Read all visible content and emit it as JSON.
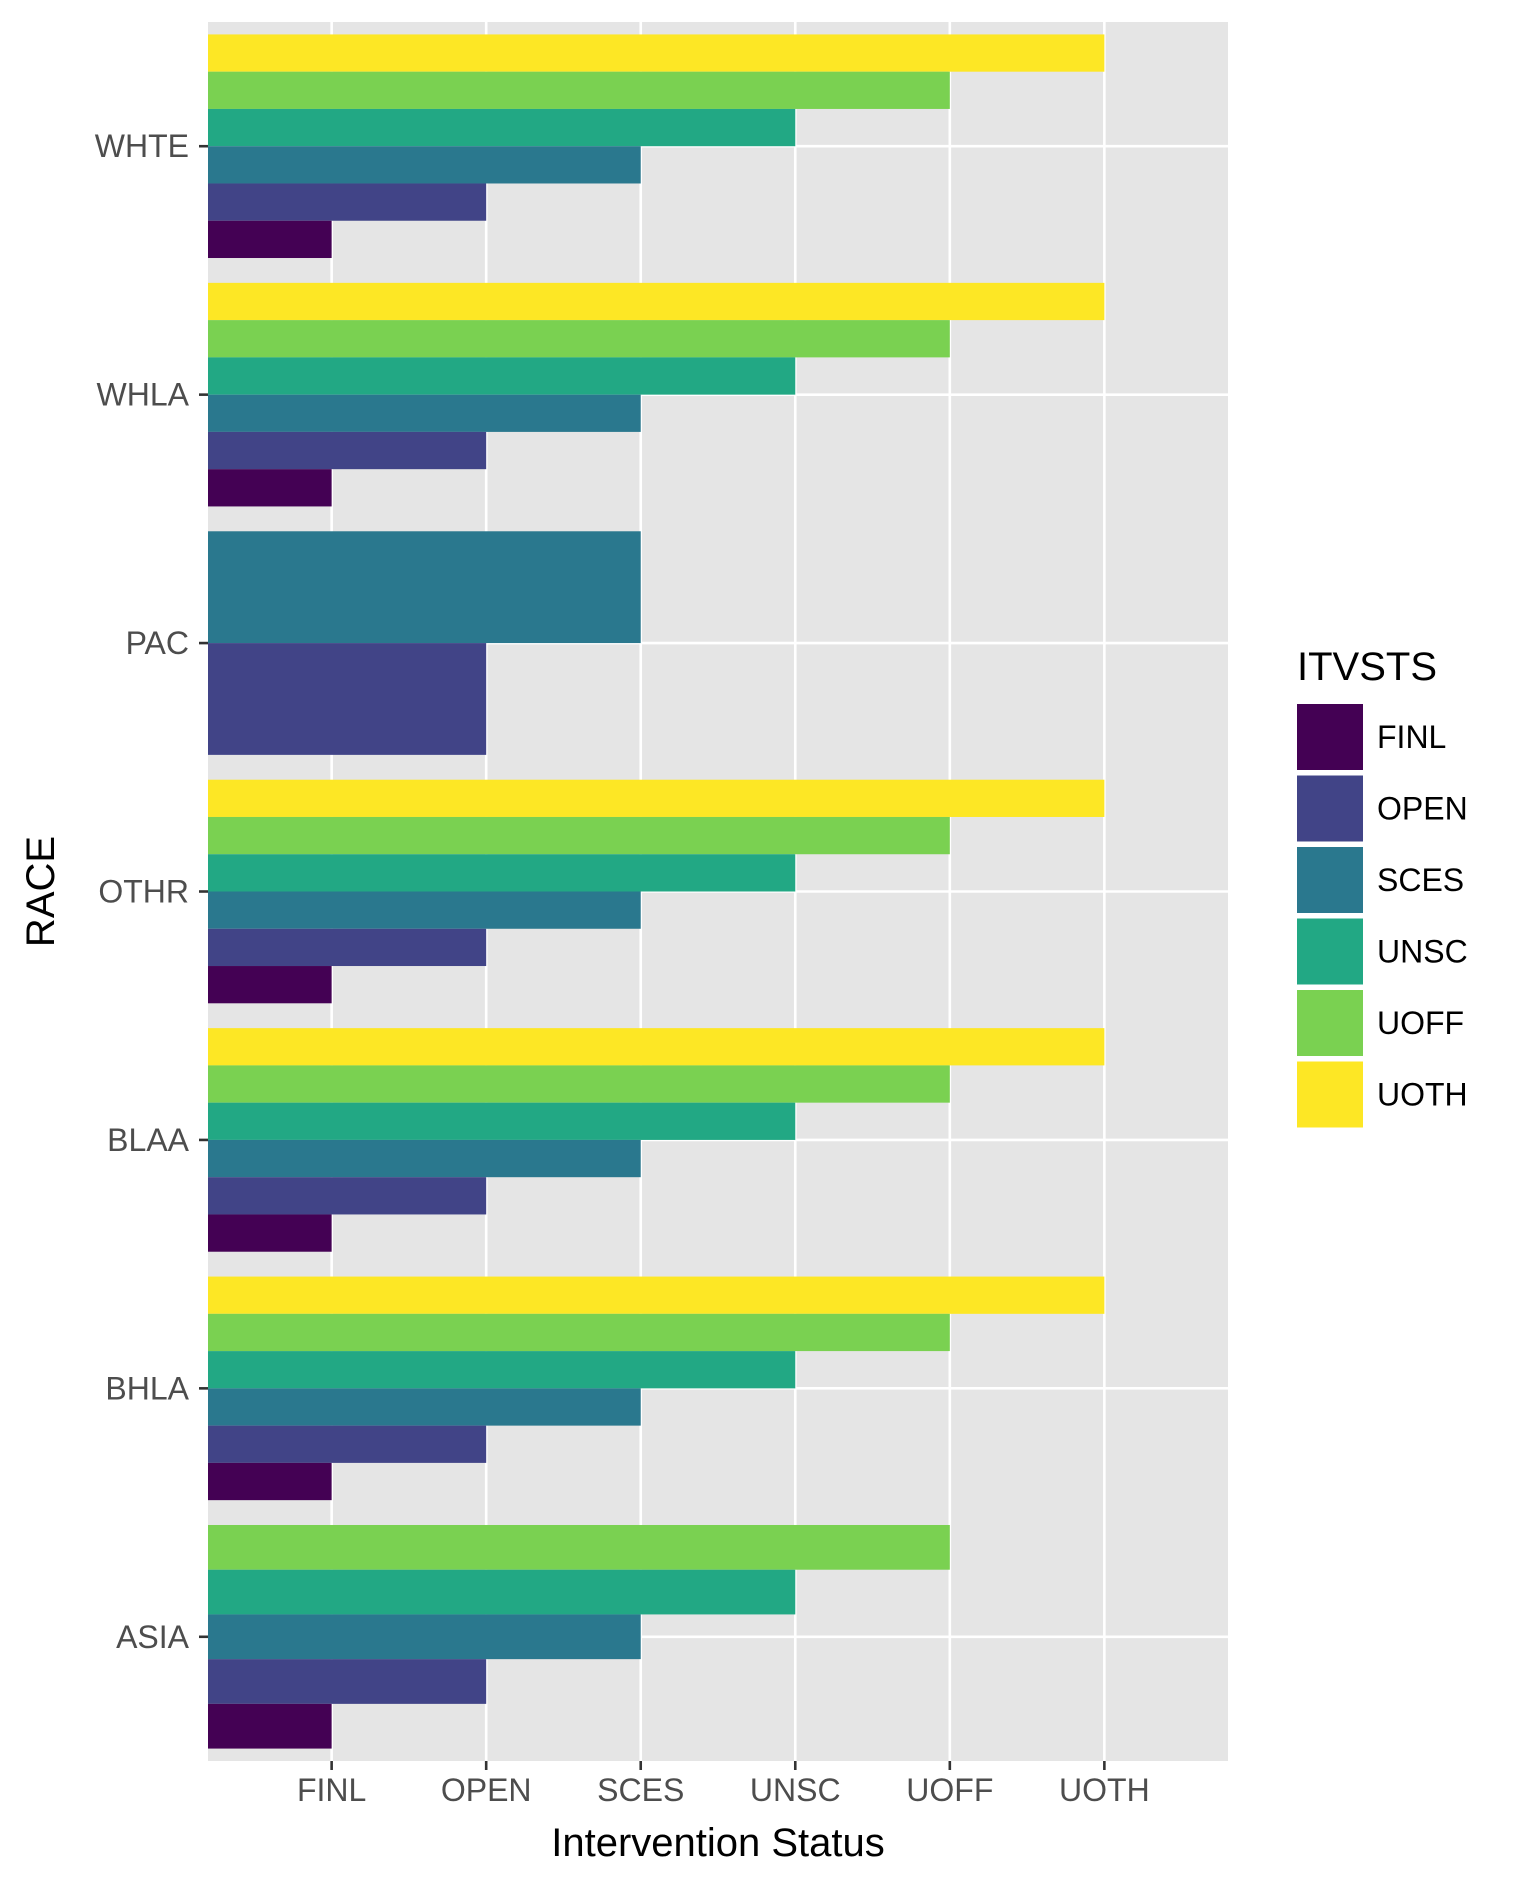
{
  "chart_data": {
    "type": "bar",
    "orientation": "horizontal",
    "xlabel": "Intervention Status",
    "ylabel": "RACE",
    "x_categories": [
      "FINL",
      "OPEN",
      "SCES",
      "UNSC",
      "UOFF",
      "UOTH"
    ],
    "y_categories": [
      "WHTE",
      "WHLA",
      "PAC",
      "OTHR",
      "BLAA",
      "BHLA",
      "ASIA"
    ],
    "legend": {
      "title": "ITVSTS",
      "placement": "right",
      "items": [
        {
          "label": "FINL",
          "color": "#440154"
        },
        {
          "label": "OPEN",
          "color": "#414487"
        },
        {
          "label": "SCES",
          "color": "#2A788E"
        },
        {
          "label": "UNSC",
          "color": "#22A884"
        },
        {
          "label": "UOFF",
          "color": "#7AD151"
        },
        {
          "label": "UOTH",
          "color": "#FDE725"
        }
      ]
    },
    "groups": [
      {
        "race": "WHTE",
        "bars": [
          {
            "status": "FINL",
            "value": "FINL"
          },
          {
            "status": "OPEN",
            "value": "OPEN"
          },
          {
            "status": "SCES",
            "value": "SCES"
          },
          {
            "status": "UNSC",
            "value": "UNSC"
          },
          {
            "status": "UOFF",
            "value": "UOFF"
          },
          {
            "status": "UOTH",
            "value": "UOTH"
          }
        ]
      },
      {
        "race": "WHLA",
        "bars": [
          {
            "status": "FINL",
            "value": "FINL"
          },
          {
            "status": "OPEN",
            "value": "OPEN"
          },
          {
            "status": "SCES",
            "value": "SCES"
          },
          {
            "status": "UNSC",
            "value": "UNSC"
          },
          {
            "status": "UOFF",
            "value": "UOFF"
          },
          {
            "status": "UOTH",
            "value": "UOTH"
          }
        ]
      },
      {
        "race": "PAC",
        "bars": [
          {
            "status": "OPEN",
            "value": "OPEN"
          },
          {
            "status": "SCES",
            "value": "SCES"
          }
        ]
      },
      {
        "race": "OTHR",
        "bars": [
          {
            "status": "FINL",
            "value": "FINL"
          },
          {
            "status": "OPEN",
            "value": "OPEN"
          },
          {
            "status": "SCES",
            "value": "SCES"
          },
          {
            "status": "UNSC",
            "value": "UNSC"
          },
          {
            "status": "UOFF",
            "value": "UOFF"
          },
          {
            "status": "UOTH",
            "value": "UOTH"
          }
        ]
      },
      {
        "race": "BLAA",
        "bars": [
          {
            "status": "FINL",
            "value": "FINL"
          },
          {
            "status": "OPEN",
            "value": "OPEN"
          },
          {
            "status": "SCES",
            "value": "SCES"
          },
          {
            "status": "UNSC",
            "value": "UNSC"
          },
          {
            "status": "UOFF",
            "value": "UOFF"
          },
          {
            "status": "UOTH",
            "value": "UOTH"
          }
        ]
      },
      {
        "race": "BHLA",
        "bars": [
          {
            "status": "FINL",
            "value": "FINL"
          },
          {
            "status": "OPEN",
            "value": "OPEN"
          },
          {
            "status": "SCES",
            "value": "SCES"
          },
          {
            "status": "UNSC",
            "value": "UNSC"
          },
          {
            "status": "UOFF",
            "value": "UOFF"
          },
          {
            "status": "UOTH",
            "value": "UOTH"
          }
        ]
      },
      {
        "race": "ASIA",
        "bars": [
          {
            "status": "FINL",
            "value": "FINL"
          },
          {
            "status": "OPEN",
            "value": "OPEN"
          },
          {
            "status": "SCES",
            "value": "SCES"
          },
          {
            "status": "UNSC",
            "value": "UNSC"
          },
          {
            "status": "UOFF",
            "value": "UOFF"
          }
        ]
      }
    ],
    "grid": true,
    "panel_background": "#E5E5E5",
    "grid_color": "#FFFFFF"
  }
}
